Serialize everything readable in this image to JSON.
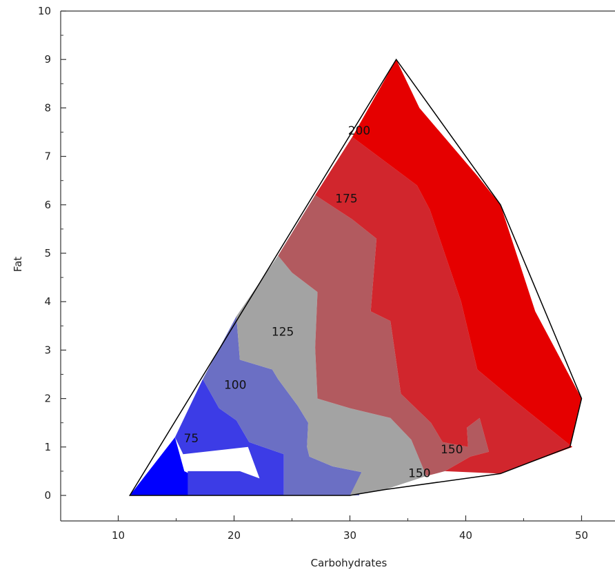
{
  "chart_data": {
    "type": "contour",
    "xlabel": "Carbohydrates",
    "ylabel": "Fat",
    "xlim": [
      5,
      53
    ],
    "ylim": [
      -0.5,
      10
    ],
    "x_ticks": [
      "10",
      "20",
      "30",
      "40",
      "50"
    ],
    "y_ticks": [
      "0",
      "1",
      "2",
      "3",
      "4",
      "5",
      "6",
      "7",
      "8",
      "9",
      "10"
    ],
    "levels": [
      {
        "color": "#0000ff",
        "points": [
          [
            11,
            0
          ],
          [
            14.9,
            1.2
          ],
          [
            15.7,
            0.5
          ],
          [
            17,
            0.35
          ],
          [
            23,
            0
          ],
          [
            11,
            0
          ]
        ]
      },
      {
        "color": "#3c3ce6",
        "points": [
          [
            14.9,
            1.2
          ],
          [
            17.3,
            2.4
          ],
          [
            18.7,
            1.8
          ],
          [
            20.2,
            1.55
          ],
          [
            21.3,
            1.1
          ],
          [
            24.3,
            0.85
          ],
          [
            24.3,
            0
          ],
          [
            16,
            0
          ],
          [
            16,
            0.5
          ],
          [
            20.5,
            0.5
          ],
          [
            22.2,
            0.35
          ],
          [
            21.2,
            1.0
          ],
          [
            15.6,
            0.85
          ]
        ]
      },
      {
        "color": "#6b6fc4",
        "points": [
          [
            17.3,
            2.4
          ],
          [
            20.2,
            3.7
          ],
          [
            20.5,
            2.8
          ],
          [
            23.3,
            2.6
          ],
          [
            23.8,
            2.4
          ],
          [
            25.5,
            1.85
          ],
          [
            26.4,
            1.5
          ],
          [
            26.3,
            1.0
          ],
          [
            26.5,
            0.8
          ],
          [
            28.5,
            0.6
          ],
          [
            31,
            0.48
          ],
          [
            30.8,
            0
          ],
          [
            24.3,
            0
          ],
          [
            24.3,
            0.85
          ],
          [
            21.3,
            1.1
          ],
          [
            20.2,
            1.55
          ],
          [
            18.7,
            1.8
          ]
        ]
      },
      {
        "color": "#a3a3a3",
        "points": [
          [
            20.2,
            3.7
          ],
          [
            23.8,
            4.95
          ],
          [
            25,
            4.6
          ],
          [
            27.2,
            4.2
          ],
          [
            27,
            3.05
          ],
          [
            27.2,
            2.0
          ],
          [
            30,
            1.8
          ],
          [
            33.5,
            1.6
          ],
          [
            35.3,
            1.15
          ],
          [
            36.6,
            0.4
          ],
          [
            33,
            0.12
          ],
          [
            30,
            0
          ],
          [
            31,
            0.48
          ],
          [
            28.5,
            0.6
          ],
          [
            26.5,
            0.8
          ],
          [
            26.3,
            1.0
          ],
          [
            26.4,
            1.5
          ],
          [
            25.5,
            1.85
          ],
          [
            23.8,
            2.4
          ],
          [
            23.3,
            2.6
          ],
          [
            20.5,
            2.8
          ]
        ]
      },
      {
        "color": "#b25a5f",
        "points": [
          [
            23.8,
            4.95
          ],
          [
            27,
            6.2
          ],
          [
            30.2,
            5.7
          ],
          [
            32.3,
            5.3
          ],
          [
            31.8,
            3.8
          ],
          [
            33.5,
            3.6
          ],
          [
            34.4,
            2.1
          ],
          [
            37,
            1.5
          ],
          [
            38,
            1.1
          ],
          [
            40.2,
            1.0
          ],
          [
            40.1,
            1.4
          ],
          [
            41.2,
            1.6
          ],
          [
            42,
            0.9
          ],
          [
            40.4,
            0.8
          ],
          [
            38.2,
            0.5
          ],
          [
            36.6,
            0.4
          ],
          [
            35.3,
            1.15
          ],
          [
            33.5,
            1.6
          ],
          [
            30,
            1.8
          ],
          [
            27.2,
            2.0
          ],
          [
            27,
            3.05
          ],
          [
            27.2,
            4.2
          ],
          [
            25,
            4.6
          ]
        ]
      },
      {
        "color": "#d1262d",
        "points": [
          [
            27,
            6.2
          ],
          [
            30.2,
            7.4
          ],
          [
            35.8,
            6.4
          ],
          [
            36.9,
            5.9
          ],
          [
            39.6,
            4.0
          ],
          [
            41,
            2.6
          ],
          [
            44,
            2.0
          ],
          [
            49.2,
            1.0
          ],
          [
            43,
            0.45
          ],
          [
            38.2,
            0.5
          ],
          [
            40.4,
            0.8
          ],
          [
            42,
            0.9
          ],
          [
            41.2,
            1.6
          ],
          [
            40.1,
            1.4
          ],
          [
            40.2,
            1.0
          ],
          [
            38,
            1.1
          ],
          [
            37,
            1.5
          ],
          [
            34.4,
            2.1
          ],
          [
            33.5,
            3.6
          ],
          [
            31.8,
            3.8
          ],
          [
            32.3,
            5.3
          ],
          [
            30.2,
            5.7
          ]
        ]
      },
      {
        "color": "#e50000",
        "points": [
          [
            30.2,
            7.4
          ],
          [
            34,
            9.0
          ],
          [
            36,
            8.0
          ],
          [
            41,
            6.6
          ],
          [
            43,
            6.0
          ],
          [
            46,
            3.8
          ],
          [
            50,
            2.0
          ],
          [
            49,
            1.0
          ],
          [
            43,
            0.45
          ],
          [
            49.2,
            1.0
          ],
          [
            44,
            2.0
          ],
          [
            41,
            2.6
          ],
          [
            39.6,
            4.0
          ],
          [
            36.9,
            5.9
          ],
          [
            35.8,
            6.4
          ]
        ]
      }
    ],
    "outline": [
      [
        11,
        0
      ],
      [
        34,
        9
      ],
      [
        43,
        6
      ],
      [
        50,
        2
      ],
      [
        49,
        1
      ],
      [
        43,
        0.45
      ],
      [
        33,
        0.12
      ],
      [
        30,
        0
      ],
      [
        11,
        0
      ]
    ],
    "contour_labels": [
      {
        "text": "75",
        "x": 16.3,
        "y": 1.1
      },
      {
        "text": "100",
        "x": 20.1,
        "y": 2.2
      },
      {
        "text": "125",
        "x": 24.2,
        "y": 3.3
      },
      {
        "text": "150",
        "x": 38.8,
        "y": 0.87
      },
      {
        "text": "150",
        "x": 36.0,
        "y": 0.38
      },
      {
        "text": "175",
        "x": 29.7,
        "y": 6.05
      },
      {
        "text": "200",
        "x": 30.8,
        "y": 7.45
      }
    ],
    "grid": false,
    "legend": "none"
  }
}
